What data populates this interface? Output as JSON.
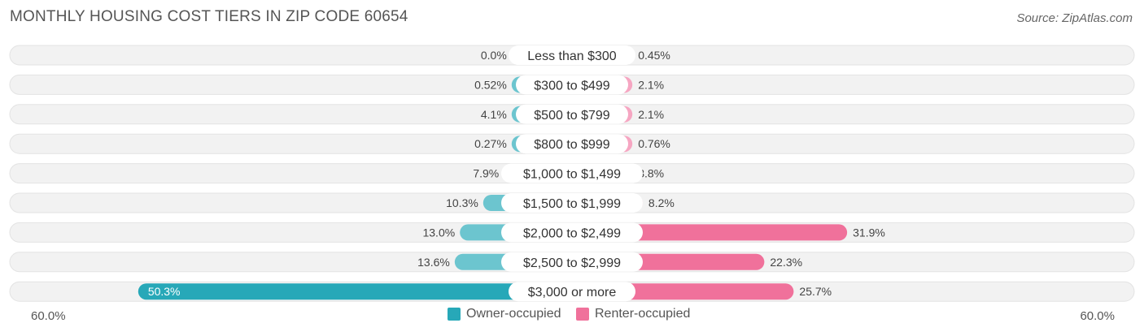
{
  "title": "MONTHLY HOUSING COST TIERS IN ZIP CODE 60654",
  "source": "Source: ZipAtlas.com",
  "colors": {
    "owner": "#6cc5cf",
    "owner_strong": "#27a8b8",
    "renter": "#f6a6c2",
    "renter_strong": "#f0719b",
    "track": "#f2f2f2"
  },
  "axis": {
    "left_label": "60.0%",
    "right_label": "60.0%"
  },
  "legend": {
    "owner": "Owner-occupied",
    "renter": "Renter-occupied"
  },
  "chart_data": {
    "type": "bar",
    "orientation": "horizontal-diverging",
    "title": "MONTHLY HOUSING COST TIERS IN ZIP CODE 60654",
    "xlim": [
      -60,
      60
    ],
    "categories": [
      "Less than $300",
      "$300 to $499",
      "$500 to $799",
      "$800 to $999",
      "$1,000 to $1,499",
      "$1,500 to $1,999",
      "$2,000 to $2,499",
      "$2,500 to $2,999",
      "$3,000 or more"
    ],
    "series": [
      {
        "name": "Owner-occupied",
        "values": [
          0.0,
          0.52,
          4.1,
          0.27,
          7.9,
          10.3,
          13.0,
          13.6,
          50.3
        ],
        "labels": [
          "0.0%",
          "0.52%",
          "4.1%",
          "0.27%",
          "7.9%",
          "10.3%",
          "13.0%",
          "13.6%",
          "50.3%"
        ]
      },
      {
        "name": "Renter-occupied",
        "values": [
          0.45,
          2.1,
          2.1,
          0.76,
          3.8,
          8.2,
          31.9,
          22.3,
          25.7
        ],
        "labels": [
          "0.45%",
          "2.1%",
          "2.1%",
          "0.76%",
          "3.8%",
          "8.2%",
          "31.9%",
          "22.3%",
          "25.7%"
        ]
      }
    ],
    "legend_position": "bottom-center"
  }
}
